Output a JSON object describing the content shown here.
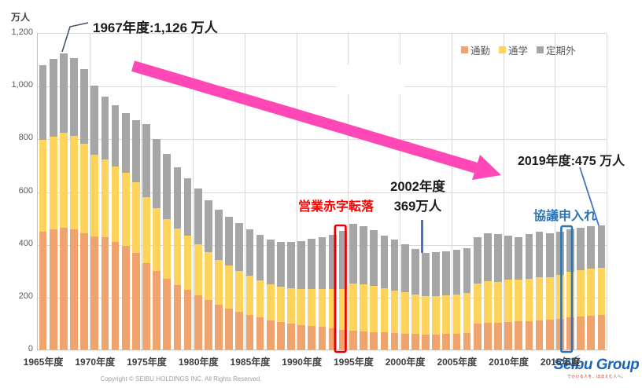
{
  "unit_label": "万人",
  "legend": {
    "items": [
      {
        "label": "通勤",
        "color": "#F1A36E"
      },
      {
        "label": "通学",
        "color": "#FFD45C"
      },
      {
        "label": "定期外",
        "color": "#A6A6A6"
      }
    ]
  },
  "y_axis": {
    "ticks": [
      {
        "value": 0,
        "label": "0"
      },
      {
        "value": 200,
        "label": "200"
      },
      {
        "value": 400,
        "label": "400"
      },
      {
        "value": 600,
        "label": "600"
      },
      {
        "value": 800,
        "label": "800"
      },
      {
        "value": 1000,
        "label": "1,000"
      },
      {
        "value": 1200,
        "label": "1,200"
      }
    ]
  },
  "x_axis": {
    "ticks": [
      {
        "year": 1965,
        "label": "1965年度"
      },
      {
        "year": 1970,
        "label": "1970年度"
      },
      {
        "year": 1975,
        "label": "1975年度"
      },
      {
        "year": 1980,
        "label": "1980年度"
      },
      {
        "year": 1985,
        "label": "1985年度"
      },
      {
        "year": 1990,
        "label": "1990年度"
      },
      {
        "year": 1995,
        "label": "1995年度"
      },
      {
        "year": 2000,
        "label": "2000年度"
      },
      {
        "year": 2005,
        "label": "2005年度"
      },
      {
        "year": 2010,
        "label": "2010年度"
      },
      {
        "year": 2015,
        "label": "2015年度"
      }
    ]
  },
  "chart_data": {
    "type": "bar",
    "stacked": true,
    "ylabel": "万人",
    "ylim": [
      0,
      1200
    ],
    "categories": [
      1965,
      1966,
      1967,
      1968,
      1969,
      1970,
      1971,
      1972,
      1973,
      1974,
      1975,
      1976,
      1977,
      1978,
      1979,
      1980,
      1981,
      1982,
      1983,
      1984,
      1985,
      1986,
      1987,
      1988,
      1989,
      1990,
      1991,
      1992,
      1993,
      1994,
      1995,
      1996,
      1997,
      1998,
      1999,
      2000,
      2001,
      2002,
      2003,
      2004,
      2005,
      2006,
      2007,
      2008,
      2009,
      2010,
      2011,
      2012,
      2013,
      2014,
      2015,
      2016,
      2017,
      2018,
      2019
    ],
    "series": [
      {
        "name": "通勤",
        "color": "#F1A36E",
        "values": [
          450,
          458,
          466,
          460,
          445,
          432,
          428,
          412,
          396,
          368,
          330,
          300,
          272,
          248,
          228,
          208,
          190,
          172,
          158,
          146,
          134,
          124,
          114,
          107,
          101,
          96,
          92,
          88,
          83,
          78,
          74,
          72,
          70,
          68,
          66,
          64,
          62,
          60,
          60,
          62,
          64,
          66,
          100,
          105,
          104,
          107,
          109,
          111,
          114,
          116,
          120,
          126,
          129,
          131,
          133
        ]
      },
      {
        "name": "通学",
        "color": "#FFD45C",
        "values": [
          348,
          352,
          358,
          352,
          338,
          310,
          295,
          285,
          276,
          268,
          250,
          238,
          226,
          215,
          206,
          195,
          183,
          172,
          164,
          156,
          148,
          141,
          135,
          133,
          133,
          135,
          139,
          143,
          148,
          153,
          180,
          178,
          174,
          167,
          161,
          155,
          149,
          145,
          145,
          146,
          148,
          150,
          154,
          157,
          156,
          160,
          158,
          161,
          164,
          162,
          166,
          172,
          176,
          179,
          181
        ]
      },
      {
        "name": "定期外",
        "color": "#A6A6A6",
        "values": [
          282,
          295,
          302,
          296,
          282,
          262,
          240,
          231,
          226,
          237,
          278,
          262,
          247,
          232,
          219,
          210,
          197,
          188,
          184,
          180,
          176,
          172,
          170,
          172,
          178,
          184,
          192,
          199,
          207,
          221,
          226,
          220,
          211,
          200,
          192,
          184,
          174,
          164,
          166,
          168,
          169,
          171,
          176,
          183,
          180,
          168,
          163,
          168,
          172,
          167,
          164,
          162,
          160,
          160,
          161
        ]
      }
    ],
    "key_points": {
      "peak": {
        "year": 1967,
        "total": 1126
      },
      "low": {
        "year": 2002,
        "total": 369
      },
      "latest": {
        "year": 2019,
        "total": 475
      }
    }
  },
  "annotations": {
    "peak_label": "1967年度:1,126 万人",
    "deficit_label": "営業赤字転落",
    "label_2002_line1": "2002年度",
    "label_2002_line2": "369万人",
    "label_2019": "2019年度:475 万人",
    "consult_label": "協議申入れ"
  },
  "highlights": {
    "red_box_year": 1994,
    "blue_box_year": 2016
  },
  "colors": {
    "commute": "#F1A36E",
    "school": "#FFD45C",
    "noncommuter": "#A6A6A6",
    "pink_arrow": "#FF47B5",
    "red_highlight": "#E60000",
    "blue_highlight": "#2E75B6",
    "blue_callout": "#4472C4",
    "dark_callout": "#44546A"
  },
  "footer": {
    "copyright": "Copyright © SEIBU HOLDINGS INC. All Rights Reserved.",
    "logo_text": "Seibu Group",
    "logo_tagline": "でかける人を、ほほえむ人へ。"
  }
}
